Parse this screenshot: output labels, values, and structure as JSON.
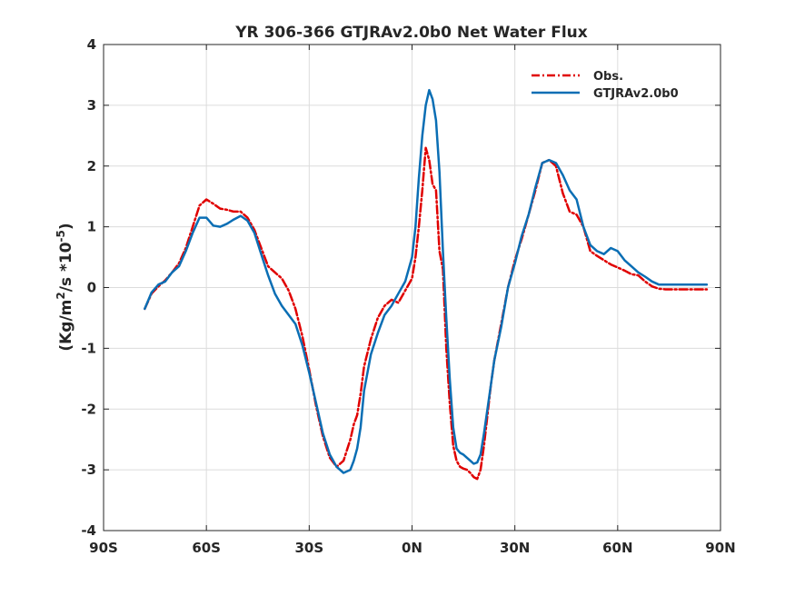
{
  "chart_data": {
    "type": "line",
    "title": "YR 306-366 GTJRAv2.0b0  Net Water Flux",
    "ylabel": {
      "prefix": "(Kg/m",
      "sup1": "2",
      "middle": "/s *10",
      "sup2": "-5",
      "suffix": ")"
    },
    "xlabel": "",
    "xlim": [
      -90,
      90
    ],
    "ylim": [
      -4,
      4
    ],
    "xticks": [
      -90,
      -60,
      -30,
      0,
      30,
      60,
      90
    ],
    "xtick_labels": [
      "90S",
      "60S",
      "30S",
      "0N",
      "30N",
      "60N",
      "90N"
    ],
    "yticks": [
      -4,
      -3,
      -2,
      -1,
      0,
      1,
      2,
      3,
      4
    ],
    "ytick_labels": [
      "-4",
      "-3",
      "-2",
      "-1",
      "0",
      "1",
      "2",
      "3",
      "4"
    ],
    "grid": true,
    "legend_position": "top-right",
    "series": [
      {
        "name": "Obs.",
        "color": "#e00000",
        "style": "dashdot",
        "x": [
          -78,
          -76,
          -74,
          -72,
          -70,
          -68,
          -66,
          -64,
          -62,
          -60,
          -58,
          -56,
          -54,
          -52,
          -50,
          -48,
          -46,
          -44,
          -42,
          -40,
          -38,
          -36,
          -34,
          -32,
          -30,
          -28,
          -26,
          -24,
          -22,
          -20,
          -18,
          -17,
          -16,
          -15,
          -14,
          -12,
          -10,
          -8,
          -6,
          -4,
          -2,
          0,
          1,
          2,
          3,
          4,
          5,
          6,
          7,
          8,
          9,
          10,
          11,
          12,
          13,
          14,
          15,
          16,
          17,
          18,
          19,
          20,
          21,
          22,
          23,
          24,
          26,
          28,
          30,
          32,
          34,
          36,
          38,
          40,
          42,
          44,
          46,
          48,
          50,
          52,
          54,
          56,
          58,
          60,
          62,
          64,
          66,
          68,
          70,
          72,
          74,
          76,
          78,
          80,
          82,
          84,
          86
        ],
        "y": [
          -0.35,
          -0.1,
          0.02,
          0.12,
          0.25,
          0.4,
          0.65,
          1.0,
          1.35,
          1.45,
          1.38,
          1.3,
          1.28,
          1.25,
          1.25,
          1.15,
          0.95,
          0.65,
          0.35,
          0.25,
          0.15,
          -0.05,
          -0.35,
          -0.8,
          -1.35,
          -1.95,
          -2.45,
          -2.8,
          -2.95,
          -2.85,
          -2.5,
          -2.25,
          -2.1,
          -1.75,
          -1.3,
          -0.85,
          -0.5,
          -0.3,
          -0.2,
          -0.25,
          -0.05,
          0.15,
          0.5,
          1.0,
          1.6,
          2.3,
          2.1,
          1.7,
          1.6,
          0.6,
          0.3,
          -1.0,
          -1.9,
          -2.6,
          -2.85,
          -2.95,
          -2.98,
          -3.0,
          -3.05,
          -3.12,
          -3.15,
          -3.0,
          -2.6,
          -2.1,
          -1.6,
          -1.2,
          -0.6,
          0.0,
          0.45,
          0.8,
          1.2,
          1.6,
          2.05,
          2.1,
          2.0,
          1.55,
          1.25,
          1.2,
          1.0,
          0.6,
          0.52,
          0.45,
          0.38,
          0.33,
          0.28,
          0.22,
          0.2,
          0.1,
          0.02,
          -0.02,
          -0.03,
          -0.03,
          -0.03,
          -0.03,
          -0.03,
          -0.03,
          -0.03
        ]
      },
      {
        "name": "GTJRAv2.0b0",
        "color": "#0a6eb4",
        "style": "solid",
        "x": [
          -78,
          -76,
          -74,
          -72,
          -70,
          -68,
          -66,
          -64,
          -62,
          -60,
          -58,
          -56,
          -54,
          -52,
          -50,
          -48,
          -46,
          -44,
          -42,
          -40,
          -38,
          -36,
          -34,
          -32,
          -30,
          -28,
          -26,
          -24,
          -22,
          -20,
          -18,
          -17,
          -16,
          -15,
          -14,
          -12,
          -10,
          -8,
          -6,
          -4,
          -2,
          0,
          1,
          2,
          3,
          4,
          5,
          6,
          7,
          8,
          9,
          10,
          11,
          12,
          13,
          14,
          15,
          16,
          17,
          18,
          19,
          20,
          21,
          22,
          23,
          24,
          26,
          28,
          30,
          32,
          34,
          36,
          38,
          40,
          42,
          44,
          46,
          48,
          50,
          52,
          54,
          56,
          58,
          60,
          62,
          64,
          66,
          68,
          70,
          72,
          74,
          76,
          78,
          80,
          82,
          84,
          86
        ],
        "y": [
          -0.35,
          -0.08,
          0.05,
          0.1,
          0.25,
          0.35,
          0.6,
          0.9,
          1.15,
          1.15,
          1.02,
          1.0,
          1.05,
          1.12,
          1.18,
          1.1,
          0.9,
          0.55,
          0.2,
          -0.1,
          -0.3,
          -0.45,
          -0.6,
          -0.95,
          -1.4,
          -1.9,
          -2.4,
          -2.75,
          -2.95,
          -3.05,
          -3.0,
          -2.85,
          -2.65,
          -2.3,
          -1.7,
          -1.1,
          -0.75,
          -0.45,
          -0.3,
          -0.1,
          0.1,
          0.5,
          1.0,
          1.8,
          2.5,
          3.0,
          3.25,
          3.1,
          2.75,
          1.9,
          0.6,
          -0.5,
          -1.5,
          -2.3,
          -2.65,
          -2.72,
          -2.75,
          -2.8,
          -2.85,
          -2.9,
          -2.88,
          -2.75,
          -2.4,
          -2.0,
          -1.6,
          -1.2,
          -0.65,
          0.0,
          0.4,
          0.85,
          1.2,
          1.65,
          2.05,
          2.1,
          2.05,
          1.85,
          1.6,
          1.45,
          1.0,
          0.7,
          0.6,
          0.55,
          0.65,
          0.6,
          0.45,
          0.35,
          0.25,
          0.18,
          0.1,
          0.05,
          0.05,
          0.05,
          0.05,
          0.05,
          0.05,
          0.05,
          0.05
        ]
      }
    ]
  }
}
